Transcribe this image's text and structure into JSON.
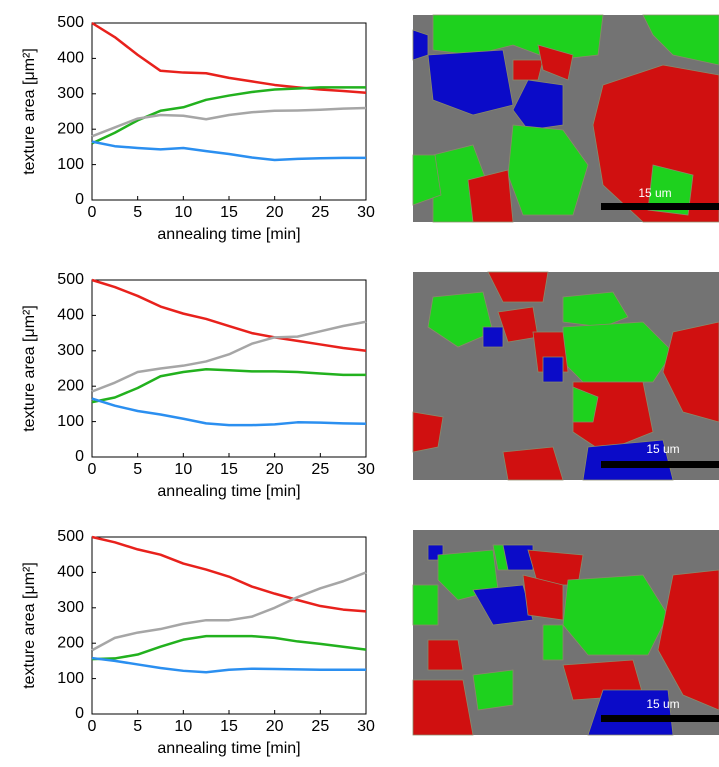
{
  "chart_data": [
    {
      "type": "line",
      "xlabel": "annealing time [min]",
      "ylabel": "texture area [μm²]",
      "x": [
        0,
        2.5,
        5,
        7.5,
        10,
        12.5,
        15,
        17.5,
        20,
        22.5,
        25,
        27.5,
        30
      ],
      "xlim": [
        0,
        30
      ],
      "xticks": [
        0,
        5,
        10,
        15,
        20,
        25,
        30
      ],
      "ylim": [
        0,
        500
      ],
      "yticks": [
        0,
        100,
        200,
        300,
        400,
        500
      ],
      "series": [
        {
          "color": "#e8211c",
          "values": [
            500,
            460,
            410,
            365,
            360,
            358,
            345,
            335,
            325,
            318,
            312,
            308,
            303
          ]
        },
        {
          "color": "#22b11e",
          "values": [
            160,
            190,
            225,
            252,
            262,
            283,
            295,
            305,
            312,
            315,
            318,
            318,
            318
          ]
        },
        {
          "color": "#a6a6a6",
          "values": [
            180,
            205,
            230,
            240,
            238,
            228,
            240,
            248,
            252,
            253,
            255,
            258,
            260
          ]
        },
        {
          "color": "#2b8ff0",
          "values": [
            165,
            152,
            147,
            143,
            147,
            138,
            130,
            120,
            113,
            116,
            118,
            119,
            119
          ]
        }
      ]
    },
    {
      "type": "line",
      "xlabel": "annealing time [min]",
      "ylabel": "texture area [μm²]",
      "x": [
        0,
        2.5,
        5,
        7.5,
        10,
        12.5,
        15,
        17.5,
        20,
        22.5,
        25,
        27.5,
        30
      ],
      "xlim": [
        0,
        30
      ],
      "xticks": [
        0,
        5,
        10,
        15,
        20,
        25,
        30
      ],
      "ylim": [
        0,
        500
      ],
      "yticks": [
        0,
        100,
        200,
        300,
        400,
        500
      ],
      "series": [
        {
          "color": "#e8211c",
          "values": [
            500,
            480,
            455,
            425,
            405,
            390,
            370,
            350,
            338,
            328,
            318,
            308,
            300
          ]
        },
        {
          "color": "#22b11e",
          "values": [
            155,
            168,
            195,
            228,
            240,
            248,
            245,
            242,
            242,
            240,
            236,
            232,
            232
          ]
        },
        {
          "color": "#a6a6a6",
          "values": [
            185,
            210,
            240,
            250,
            258,
            270,
            290,
            320,
            338,
            340,
            355,
            370,
            382
          ]
        },
        {
          "color": "#2b8ff0",
          "values": [
            165,
            145,
            130,
            120,
            108,
            95,
            90,
            90,
            92,
            98,
            97,
            95,
            94
          ]
        }
      ]
    },
    {
      "type": "line",
      "xlabel": "annealing time [min]",
      "ylabel": "texture area [μm²]",
      "x": [
        0,
        2.5,
        5,
        7.5,
        10,
        12.5,
        15,
        17.5,
        20,
        22.5,
        25,
        27.5,
        30
      ],
      "xlim": [
        0,
        30
      ],
      "xticks": [
        0,
        5,
        10,
        15,
        20,
        25,
        30
      ],
      "ylim": [
        0,
        500
      ],
      "yticks": [
        0,
        100,
        200,
        300,
        400,
        500
      ],
      "series": [
        {
          "color": "#e8211c",
          "values": [
            500,
            485,
            465,
            450,
            425,
            408,
            388,
            360,
            340,
            322,
            305,
            295,
            290
          ]
        },
        {
          "color": "#22b11e",
          "values": [
            155,
            157,
            168,
            190,
            210,
            220,
            220,
            220,
            215,
            205,
            198,
            190,
            182
          ]
        },
        {
          "color": "#a6a6a6",
          "values": [
            180,
            215,
            230,
            240,
            255,
            265,
            265,
            275,
            300,
            330,
            355,
            375,
            400
          ]
        },
        {
          "color": "#2b8ff0",
          "values": [
            158,
            150,
            140,
            130,
            122,
            118,
            125,
            128,
            127,
            126,
            125,
            125,
            125
          ]
        }
      ]
    }
  ],
  "images": [
    {
      "scale_label": "15 um"
    },
    {
      "scale_label": "15 um"
    },
    {
      "scale_label": "15 um"
    }
  ]
}
